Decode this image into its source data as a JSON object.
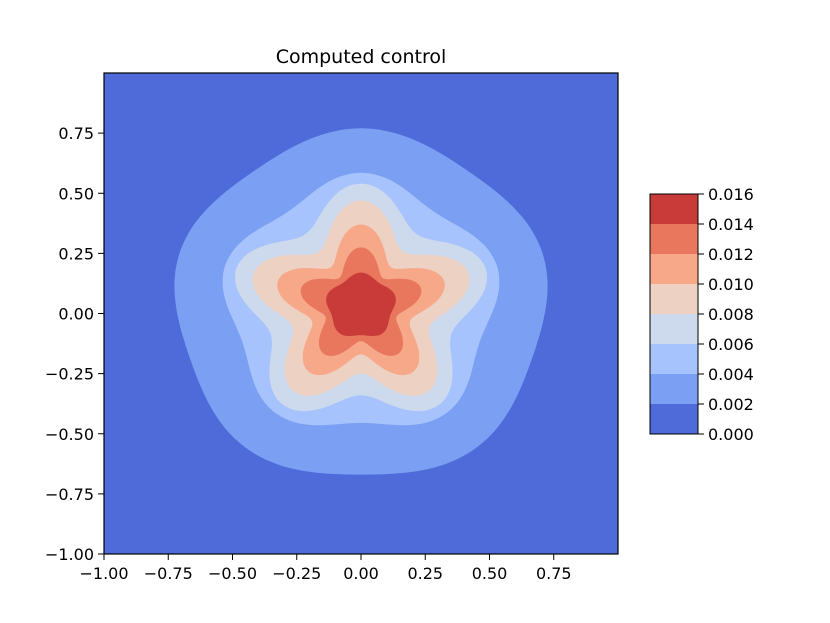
{
  "chart_data": {
    "type": "contour",
    "title": "Computed control",
    "xlabel": "",
    "ylabel": "",
    "xlim": [
      -1.0,
      1.0
    ],
    "ylim": [
      -1.0,
      1.0
    ],
    "x_ticks": [
      -1.0,
      -0.75,
      -0.5,
      -0.25,
      0.0,
      0.25,
      0.5,
      0.75
    ],
    "x_tick_labels": [
      "−1.00",
      "−0.75",
      "−0.50",
      "−0.25",
      "0.00",
      "0.25",
      "0.50",
      "0.75"
    ],
    "y_ticks": [
      -1.0,
      -0.75,
      -0.5,
      -0.25,
      0.0,
      0.25,
      0.5,
      0.75
    ],
    "y_tick_labels": [
      "−1.00",
      "−0.75",
      "−0.50",
      "−0.25",
      "0.00",
      "0.25",
      "0.50",
      "0.75"
    ],
    "levels": [
      0.0,
      0.002,
      0.004,
      0.006,
      0.008,
      0.01,
      0.012,
      0.014,
      0.016
    ],
    "colorbar_tick_labels": [
      "0.000",
      "0.002",
      "0.004",
      "0.006",
      "0.008",
      "0.010",
      "0.012",
      "0.014",
      "0.016"
    ],
    "level_colors": [
      "#4f6ad9",
      "#7b9ff2",
      "#a6c3fd",
      "#cdd9ec",
      "#edd1c2",
      "#f6a889",
      "#e8775e",
      "#c93b38"
    ],
    "field": {
      "shape": "five-lobed star centered at origin",
      "center": [
        0.0,
        0.03
      ],
      "peak_value": 0.0155,
      "boundary_samples": [
        {
          "level": 0.002,
          "radius_mean": 0.72,
          "lobe_amplitude": 0.02
        },
        {
          "level": 0.004,
          "radius_mean": 0.52,
          "lobe_amplitude": 0.035
        },
        {
          "level": 0.006,
          "radius_mean": 0.44,
          "lobe_amplitude": 0.07
        },
        {
          "level": 0.008,
          "radius_mean": 0.36,
          "lobe_amplitude": 0.08
        },
        {
          "level": 0.01,
          "radius_mean": 0.27,
          "lobe_amplitude": 0.07
        },
        {
          "level": 0.012,
          "radius_mean": 0.195,
          "lobe_amplitude": 0.05
        },
        {
          "level": 0.014,
          "radius_mean": 0.13,
          "lobe_amplitude": 0.01
        }
      ]
    },
    "colorbar_position": "right",
    "grid": false
  }
}
